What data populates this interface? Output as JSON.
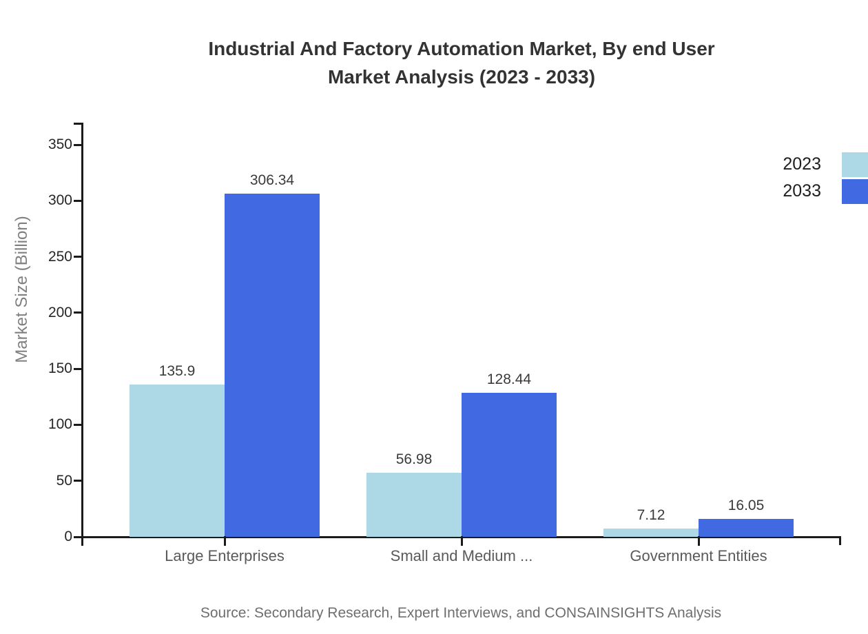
{
  "header": {
    "title_line1": "Industrial And Factory Automation Market, By end User",
    "title_line2": "Market Analysis (2023 - 2033)"
  },
  "footer": {
    "source": "Source: Secondary Research, Expert Interviews, and CONSAINSIGHTS Analysis"
  },
  "chart_data": {
    "type": "bar",
    "title": "Industrial And Factory Automation Market, By end User Market Analysis (2023 - 2033)",
    "categories": [
      "Large Enterprises",
      "Small and Medium ...",
      "Government Entities"
    ],
    "series": [
      {
        "name": "2023",
        "color": "#ADD8E6",
        "values": [
          135.9,
          56.98,
          7.12
        ]
      },
      {
        "name": "2033",
        "color": "#4169E1",
        "values": [
          306.34,
          128.44,
          16.05
        ]
      }
    ],
    "xlabel": "",
    "ylabel": "Market Size (Billion)",
    "ylim": [
      0,
      350
    ],
    "yticks": [
      0,
      50,
      100,
      150,
      200,
      250,
      300,
      350
    ],
    "grid": false,
    "legend_position": "top-right",
    "value_labels": true
  }
}
